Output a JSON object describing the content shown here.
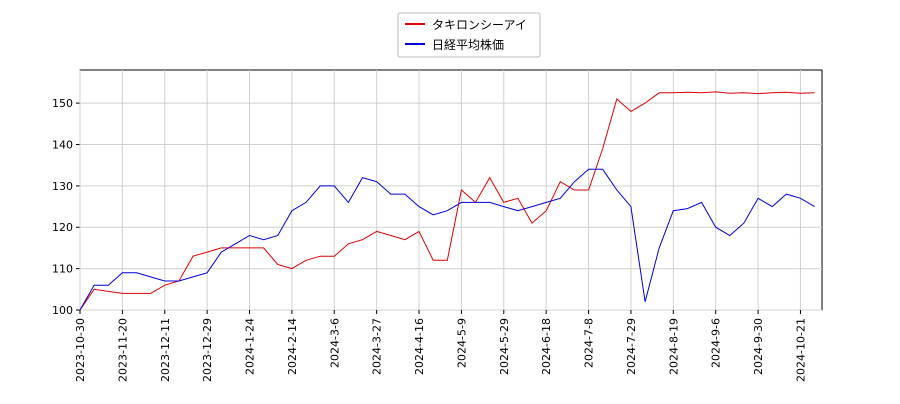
{
  "chart_data": {
    "type": "line",
    "categories": [
      "2023-10-30",
      null,
      null,
      "2023-11-20",
      null,
      null,
      "2023-12-11",
      null,
      null,
      "2023-12-29",
      null,
      null,
      "2024-1-24",
      null,
      null,
      "2024-2-14",
      null,
      null,
      "2024-3-6",
      null,
      null,
      "2024-3-27",
      null,
      null,
      "2024-4-16",
      null,
      null,
      "2024-5-9",
      null,
      null,
      "2024-5-29",
      null,
      null,
      "2024-6-18",
      null,
      null,
      "2024-7-8",
      null,
      null,
      "2024-7-29",
      null,
      null,
      "2024-8-19",
      null,
      null,
      "2024-9-6",
      null,
      null,
      "2024-9-30",
      null,
      null,
      "2024-10-21",
      null
    ],
    "series": [
      {
        "name": "タキロンシーアイ",
        "color": "#dd0000",
        "values": [
          100,
          105,
          104.5,
          104,
          104,
          104,
          106,
          107,
          113,
          114,
          115,
          115,
          115,
          115,
          111,
          110,
          112,
          113,
          113,
          116,
          117,
          119,
          118,
          117,
          119,
          112,
          112,
          129,
          126,
          132,
          126,
          127,
          121,
          124,
          131,
          129,
          129,
          139,
          151,
          148,
          150,
          152.5,
          152.5,
          152.6,
          152.5,
          152.7,
          152.4,
          152.5,
          152.3,
          152.5,
          152.6,
          152.4,
          152.5
        ]
      },
      {
        "name": "日経平均株価",
        "color": "#0000dd",
        "values": [
          100,
          106,
          106,
          109,
          109,
          108,
          107,
          107,
          108,
          109,
          114,
          116,
          118,
          117,
          118,
          124,
          126,
          130,
          130,
          126,
          132,
          131,
          128,
          128,
          125,
          123,
          124,
          126,
          126,
          126,
          125,
          124,
          125,
          126,
          127,
          131,
          134,
          134,
          129,
          125,
          102,
          115,
          124,
          124.5,
          126,
          120,
          118,
          121,
          127,
          125,
          128,
          127,
          125
        ]
      }
    ],
    "ylim": [
      100,
      158
    ],
    "yticks": [
      100,
      110,
      120,
      130,
      140,
      150
    ],
    "grid": true
  }
}
